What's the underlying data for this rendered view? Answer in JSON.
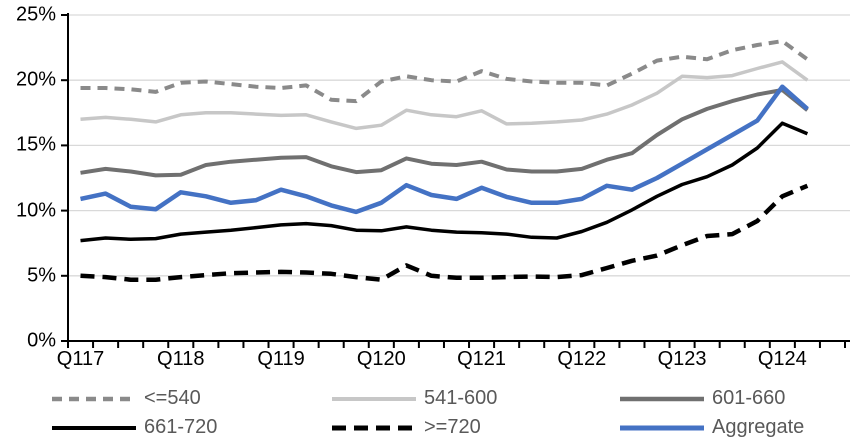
{
  "chart_data": {
    "type": "line",
    "title": "",
    "xlabel": "",
    "ylabel": "",
    "ylim": [
      0,
      25
    ],
    "grid": true,
    "legend_position": "bottom",
    "y_tick_labels_top_to_bottom": [
      "25%",
      "20%",
      "15%",
      "10%",
      "5%",
      "0%"
    ],
    "x_label_every": 4,
    "categories": [
      "Q117",
      "Q217",
      "Q317",
      "Q417",
      "Q118",
      "Q218",
      "Q318",
      "Q418",
      "Q119",
      "Q219",
      "Q319",
      "Q419",
      "Q120",
      "Q220",
      "Q320",
      "Q420",
      "Q121",
      "Q221",
      "Q321",
      "Q421",
      "Q122",
      "Q222",
      "Q322",
      "Q422",
      "Q123",
      "Q223",
      "Q323",
      "Q423",
      "Q124",
      "Q224"
    ],
    "series": [
      {
        "name": "<=540",
        "color": "#8A8A8A",
        "style": "dashed",
        "values": [
          19.4,
          19.4,
          19.3,
          19.1,
          19.8,
          19.9,
          19.7,
          19.5,
          19.4,
          19.6,
          18.5,
          18.4,
          19.9,
          20.3,
          20.0,
          19.9,
          20.7,
          20.1,
          19.9,
          19.8,
          19.8,
          19.6,
          20.5,
          21.5,
          21.8,
          21.6,
          22.3,
          22.7,
          23.0,
          21.6
        ]
      },
      {
        "name": "541-600",
        "color": "#C7C7C7",
        "style": "solid",
        "values": [
          17.0,
          17.15,
          17.0,
          16.8,
          17.35,
          17.5,
          17.5,
          17.4,
          17.3,
          17.35,
          16.8,
          16.3,
          16.55,
          17.7,
          17.35,
          17.2,
          17.65,
          16.65,
          16.7,
          16.8,
          16.95,
          17.4,
          18.1,
          19.0,
          20.3,
          20.2,
          20.35,
          20.9,
          21.4,
          20.0
        ]
      },
      {
        "name": "601-660",
        "color": "#707070",
        "style": "solid",
        "values": [
          12.9,
          13.2,
          13.0,
          12.7,
          12.75,
          13.5,
          13.75,
          13.9,
          14.05,
          14.1,
          13.4,
          12.95,
          13.1,
          14.0,
          13.6,
          13.5,
          13.75,
          13.15,
          13.0,
          13.0,
          13.2,
          13.9,
          14.4,
          15.8,
          17.0,
          17.8,
          18.4,
          18.9,
          19.25,
          17.7
        ]
      },
      {
        "name": "661-720",
        "color": "#000000",
        "style": "solid",
        "values": [
          7.7,
          7.9,
          7.8,
          7.85,
          8.2,
          8.35,
          8.5,
          8.7,
          8.9,
          9.0,
          8.85,
          8.5,
          8.45,
          8.75,
          8.5,
          8.35,
          8.3,
          8.2,
          7.95,
          7.9,
          8.4,
          9.1,
          10.05,
          11.1,
          12.0,
          12.6,
          13.5,
          14.8,
          16.7,
          15.9
        ]
      },
      {
        "name": ">=720",
        "color": "#000000",
        "style": "dashed",
        "values": [
          5.0,
          4.9,
          4.7,
          4.7,
          4.9,
          5.05,
          5.2,
          5.25,
          5.3,
          5.25,
          5.15,
          4.9,
          4.7,
          5.8,
          5.0,
          4.85,
          4.85,
          4.9,
          4.95,
          4.9,
          5.05,
          5.6,
          6.15,
          6.55,
          7.35,
          8.05,
          8.2,
          9.2,
          11.1,
          11.9
        ]
      },
      {
        "name": "Aggregate",
        "color": "#4472C4",
        "style": "solid",
        "values": [
          10.9,
          11.3,
          10.3,
          10.1,
          11.4,
          11.1,
          10.6,
          10.8,
          11.6,
          11.1,
          10.4,
          9.9,
          10.6,
          11.95,
          11.2,
          10.9,
          11.75,
          11.05,
          10.6,
          10.6,
          10.9,
          11.9,
          11.6,
          12.5,
          13.6,
          14.7,
          15.8,
          16.9,
          19.5,
          17.8
        ]
      }
    ],
    "colors": {
      "gridline": "#D9D9D9",
      "axis": "#000000",
      "axis_text": "#000000",
      "legend_text": "#595959",
      "background": "#FFFFFF"
    }
  }
}
